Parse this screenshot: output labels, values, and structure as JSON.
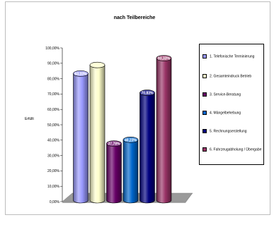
{
  "chart_data": {
    "type": "bar",
    "title": "nach Teilbereiche",
    "ylabel": "Erfüllt",
    "xlabel": "",
    "ylim": [
      0,
      100
    ],
    "yticks": [
      "0,00%",
      "10,00%",
      "20,00%",
      "30,00%",
      "40,00%",
      "50,00%",
      "60,00%",
      "70,00%",
      "80,00%",
      "90,00%",
      "100,00%"
    ],
    "categories": [
      "1. Telefonische Terminierung",
      "2. Gesamteindruck Betrieb",
      "3. Service-Beratung",
      "4. Mängelbehebung",
      "5. Rechnungserstellung",
      "6. Fahrzeugabholung / Übergabe"
    ],
    "values": [
      83.33,
      88.89,
      37.78,
      40.23,
      70.83,
      93.33
    ],
    "value_labels": [
      "83,33%",
      "",
      "37,78%",
      "40,23%",
      "70,83%",
      "93,33%"
    ],
    "colors": [
      "#9999ff",
      "#ffffcc",
      "#660066",
      "#0066cc",
      "#000080",
      "#993366"
    ],
    "legend_position": "right",
    "style": "3d-cylinder",
    "grid": false
  }
}
